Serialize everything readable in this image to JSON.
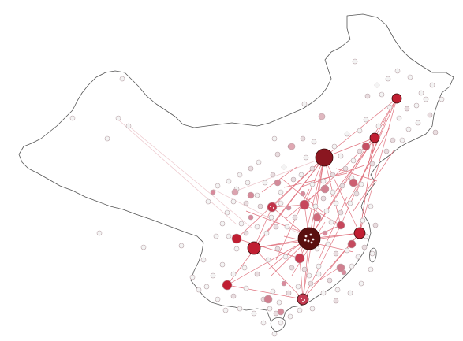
{
  "map": {
    "palette": {
      "outline": "#555555",
      "link": "#e0737f",
      "link_faint": "#ecc7cc",
      "hub_dark": "#5a0f0f",
      "hub_red": "#c01e32",
      "mid": "#d98a9c",
      "light": "#e9dde0",
      "pale": "#f4f4f4"
    },
    "hubs": [
      {
        "name": "hub-beijing",
        "level": "major-red"
      },
      {
        "name": "hub-wuhan",
        "level": "darkest"
      },
      {
        "name": "hub-chengdu",
        "level": "red"
      },
      {
        "name": "hub-shanghai",
        "level": "red"
      },
      {
        "name": "hub-guangzhou",
        "level": "red"
      },
      {
        "name": "hub-harbin",
        "level": "red"
      },
      {
        "name": "hub-shenyang",
        "level": "red"
      }
    ]
  }
}
